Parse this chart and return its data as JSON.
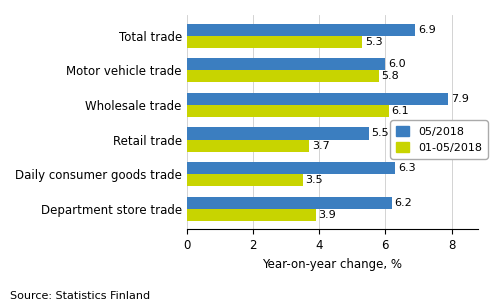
{
  "categories": [
    "Department store trade",
    "Daily consumer goods trade",
    "Retail trade",
    "Wholesale trade",
    "Motor vehicle trade",
    "Total trade"
  ],
  "series_blue": [
    6.2,
    6.3,
    5.5,
    7.9,
    6.0,
    6.9
  ],
  "series_green": [
    3.9,
    3.5,
    3.7,
    6.1,
    5.8,
    5.3
  ],
  "blue_color": "#3B7EC0",
  "green_color": "#C8D400",
  "legend_labels": [
    "05/2018",
    "01-05/2018"
  ],
  "xlabel": "Year-on-year change, %",
  "xlim": [
    0,
    8.8
  ],
  "xticks": [
    0,
    2,
    4,
    6,
    8
  ],
  "source_text": "Source: Statistics Finland",
  "bar_height": 0.35,
  "tick_fontsize": 8.5,
  "label_fontsize": 8.5,
  "annotation_fontsize": 8.0,
  "legend_fontsize": 8.0,
  "source_fontsize": 8.0
}
